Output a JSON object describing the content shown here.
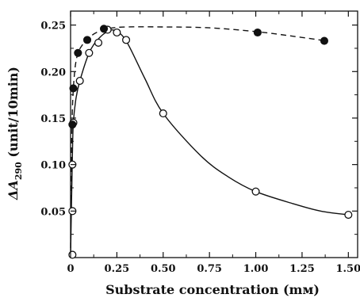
{
  "chart_data": {
    "type": "scatter",
    "xlabel": "Substrate concentration (mм)",
    "ylabel_main": "ΔA",
    "ylabel_sub": "290",
    "ylabel_rest": " (unit/10min)",
    "xlim": [
      0,
      1.55
    ],
    "ylim": [
      0,
      0.265
    ],
    "x_ticks": [
      "0",
      "0.25",
      "0.50",
      "0.75",
      "1.00",
      "1.25",
      "1.50"
    ],
    "x_tick_values": [
      0,
      0.25,
      0.5,
      0.75,
      1.0,
      1.25,
      1.5
    ],
    "y_ticks": [
      "0.05",
      "0.10",
      "0.15",
      "0.20",
      "0.25"
    ],
    "y_tick_values": [
      0.05,
      0.1,
      0.15,
      0.2,
      0.25
    ],
    "grid": false,
    "legend": "none",
    "series": [
      {
        "marker": "filled-circle",
        "line": "dashed",
        "color": "#111111",
        "points": [
          [
            0.01,
            0.143
          ],
          [
            0.015,
            0.182
          ],
          [
            0.04,
            0.22
          ],
          [
            0.09,
            0.234
          ],
          [
            0.18,
            0.246
          ],
          [
            1.01,
            0.242
          ],
          [
            1.37,
            0.233
          ]
        ],
        "curve": [
          [
            0.0,
            0.0
          ],
          [
            0.003,
            0.085
          ],
          [
            0.006,
            0.13
          ],
          [
            0.01,
            0.16
          ],
          [
            0.015,
            0.182
          ],
          [
            0.025,
            0.205
          ],
          [
            0.04,
            0.22
          ],
          [
            0.065,
            0.229
          ],
          [
            0.09,
            0.235
          ],
          [
            0.14,
            0.242
          ],
          [
            0.2,
            0.246
          ],
          [
            0.3,
            0.248
          ],
          [
            0.5,
            0.248
          ],
          [
            0.75,
            0.247
          ],
          [
            1.0,
            0.243
          ],
          [
            1.2,
            0.238
          ],
          [
            1.38,
            0.233
          ]
        ]
      },
      {
        "marker": "open-circle",
        "line": "solid",
        "color": "#111111",
        "points": [
          [
            0.01,
            0.003
          ],
          [
            0.01,
            0.05
          ],
          [
            0.01,
            0.1
          ],
          [
            0.015,
            0.145
          ],
          [
            0.05,
            0.19
          ],
          [
            0.1,
            0.22
          ],
          [
            0.15,
            0.231
          ],
          [
            0.2,
            0.245
          ],
          [
            0.25,
            0.242
          ],
          [
            0.3,
            0.234
          ],
          [
            0.5,
            0.155
          ],
          [
            1.0,
            0.071
          ],
          [
            1.5,
            0.046
          ]
        ],
        "curve": [
          [
            0.0,
            0.0
          ],
          [
            0.005,
            0.06
          ],
          [
            0.01,
            0.11
          ],
          [
            0.015,
            0.145
          ],
          [
            0.03,
            0.172
          ],
          [
            0.05,
            0.19
          ],
          [
            0.1,
            0.22
          ],
          [
            0.15,
            0.235
          ],
          [
            0.2,
            0.243
          ],
          [
            0.24,
            0.244
          ],
          [
            0.3,
            0.233
          ],
          [
            0.4,
            0.193
          ],
          [
            0.5,
            0.155
          ],
          [
            0.7,
            0.11
          ],
          [
            0.85,
            0.087
          ],
          [
            1.0,
            0.071
          ],
          [
            1.2,
            0.058
          ],
          [
            1.35,
            0.05
          ],
          [
            1.5,
            0.046
          ]
        ]
      }
    ]
  }
}
